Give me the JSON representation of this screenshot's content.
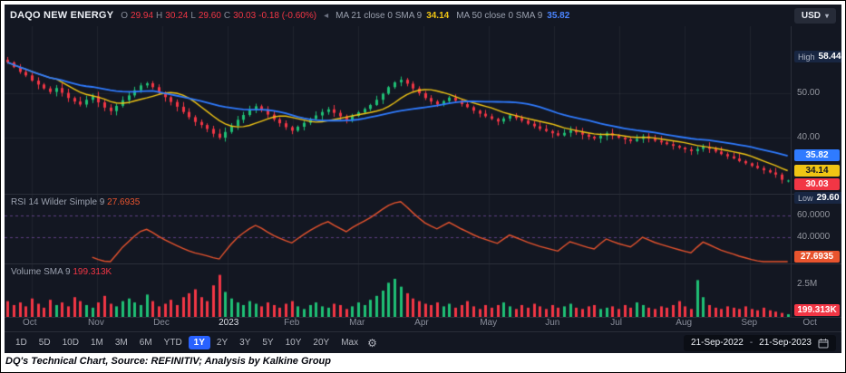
{
  "header": {
    "symbol": "DAQO NEW ENERGY",
    "ohlc": [
      {
        "k": "O",
        "v": "29.94"
      },
      {
        "k": "H",
        "v": "30.24"
      },
      {
        "k": "L",
        "v": "29.60"
      },
      {
        "k": "C",
        "v": "30.03"
      }
    ],
    "change": "-0.18 (-0.60%)",
    "ma_fast_label": "MA 21 close 0 SMA 9",
    "ma_fast_value": "34.14",
    "ma_slow_label": "MA 50 close 0 SMA 9",
    "ma_slow_value": "35.82",
    "currency": "USD"
  },
  "icons": {
    "caret_down": "▾",
    "gear": "⚙",
    "collapse_left": "◂"
  },
  "colors": {
    "up": "#1fbf75",
    "down": "#f23645",
    "accent": "#2962ff",
    "ma_fast": "#f0c514",
    "ma_slow": "#2f7bff",
    "rsi": "#e8542e"
  },
  "price_axis": {
    "high_label": "High",
    "high_value": "58.44",
    "ticks": [
      "50.00",
      "40.00"
    ],
    "badge_blue": "35.82",
    "badge_yellow": "34.14",
    "badge_red": "30.03",
    "low_label": "Low",
    "low_value": "29.60"
  },
  "rsi_panel": {
    "title": "RSI 14 Wilder Simple 9",
    "value": "27.6935",
    "tick_60": "60.0000",
    "tick_40": "40.0000",
    "badge": "27.6935"
  },
  "volume_panel": {
    "title": "Volume SMA 9",
    "value": "199.313K",
    "tick": "2.5M",
    "badge": "199.313K"
  },
  "toolbar": {
    "ranges": [
      "1D",
      "5D",
      "10D",
      "1M",
      "3M",
      "6M",
      "YTD",
      "1Y",
      "2Y",
      "3Y",
      "5Y",
      "10Y",
      "20Y",
      "Max"
    ],
    "active": "1Y",
    "date_from": "21-Sep-2022",
    "date_separator": "-",
    "date_to": "21-Sep-2023"
  },
  "caption": "DQ's Technical Chart, Source: REFINITIV; Analysis by Kalkine Group",
  "chart_data": {
    "type": "candlestick",
    "title": "DAQO NEW ENERGY daily, 21-Sep-2022 to 21-Sep-2023",
    "panels": [
      "price",
      "rsi",
      "volume"
    ],
    "price_axis_range": [
      27,
      65.5
    ],
    "gridline_prices": [
      50,
      40
    ],
    "high": 58.44,
    "low": 29.6,
    "last_candle": {
      "o": 29.94,
      "h": 30.24,
      "l": 29.6,
      "c": 30.03
    },
    "closes": [
      57.2,
      56.1,
      55.0,
      54.2,
      53.0,
      52.1,
      51.2,
      50.4,
      51.3,
      50.2,
      49.0,
      48.2,
      47.5,
      48.6,
      49.4,
      48.0,
      46.8,
      46.0,
      47.2,
      48.5,
      49.6,
      50.8,
      51.9,
      52.4,
      51.5,
      50.3,
      49.2,
      48.1,
      47.0,
      45.8,
      44.6,
      43.5,
      42.8,
      41.9,
      40.8,
      39.9,
      41.2,
      42.6,
      44.0,
      45.1,
      46.2,
      47.1,
      46.3,
      45.2,
      44.1,
      43.2,
      42.3,
      41.5,
      42.4,
      43.3,
      44.2,
      45.0,
      45.8,
      46.4,
      45.6,
      44.8,
      44.0,
      44.9,
      45.7,
      46.5,
      47.4,
      48.6,
      50.0,
      51.5,
      52.6,
      53.2,
      52.3,
      51.2,
      50.1,
      49.0,
      48.2,
      47.5,
      48.3,
      49.1,
      48.4,
      47.6,
      46.9,
      46.1,
      45.4,
      44.8,
      44.2,
      43.6,
      44.3,
      45.0,
      44.4,
      43.8,
      43.1,
      42.5,
      41.9,
      41.4,
      40.9,
      40.4,
      41.0,
      41.6,
      41.1,
      40.6,
      40.1,
      39.7,
      40.3,
      40.9,
      40.4,
      39.9,
      39.5,
      39.1,
      39.6,
      40.2,
      39.7,
      39.2,
      38.8,
      38.4,
      38.0,
      37.6,
      37.2,
      36.8,
      37.3,
      37.8,
      37.3,
      36.7,
      36.1,
      35.6,
      35.1,
      34.5,
      34.0,
      33.4,
      32.9,
      32.4,
      31.9,
      31.4,
      30.21,
      30.03
    ],
    "volumes": [
      1.2,
      0.9,
      1.1,
      0.8,
      1.4,
      1.0,
      0.7,
      1.3,
      0.9,
      1.1,
      0.8,
      1.5,
      1.2,
      0.9,
      0.7,
      1.1,
      1.6,
      1.0,
      0.8,
      1.2,
      1.4,
      1.1,
      0.9,
      1.7,
      1.2,
      0.8,
      1.0,
      1.3,
      0.9,
      1.5,
      1.8,
      2.1,
      1.5,
      1.2,
      2.4,
      3.2,
      1.9,
      1.4,
      1.1,
      0.9,
      1.2,
      1.0,
      0.8,
      1.1,
      0.9,
      0.7,
      1.0,
      1.2,
      0.8,
      0.6,
      0.9,
      1.1,
      0.8,
      0.7,
      1.0,
      0.9,
      0.6,
      0.8,
      1.1,
      0.9,
      1.3,
      1.6,
      2.0,
      2.6,
      2.9,
      2.3,
      1.8,
      1.4,
      1.2,
      1.0,
      0.9,
      1.1,
      0.8,
      1.0,
      0.7,
      0.9,
      1.2,
      0.8,
      0.6,
      0.9,
      0.7,
      0.9,
      1.1,
      0.8,
      0.6,
      0.9,
      0.7,
      1.0,
      0.8,
      0.6,
      0.9,
      0.7,
      0.8,
      1.0,
      0.7,
      0.6,
      0.8,
      0.9,
      0.6,
      0.7,
      0.8,
      0.6,
      0.9,
      0.7,
      1.1,
      0.9,
      0.7,
      0.6,
      0.8,
      0.7,
      0.9,
      1.2,
      0.8,
      0.6,
      2.8,
      1.5,
      0.9,
      0.7,
      0.6,
      0.8,
      0.7,
      0.6,
      0.8,
      0.6,
      0.5,
      0.7,
      0.5,
      0.4,
      0.3,
      0.2
    ],
    "ma_fast": {
      "name": "MA 21 close 0 SMA 9",
      "window": 9,
      "color": "#f0c514",
      "last": 34.14
    },
    "ma_slow": {
      "name": "MA 50 close 0 SMA 9",
      "window": 25,
      "color": "#2f7bff",
      "last": 35.82
    },
    "rsi": {
      "name": "RSI 14 Wilder Simple 9",
      "period": 14,
      "last": 27.6935,
      "range": [
        15,
        80
      ],
      "grid": [
        60,
        40
      ],
      "color": "#e8542e"
    },
    "volume_axis": {
      "max": 4.0,
      "tick": 2.5,
      "tick_label": "2.5M",
      "last_label": "199.313K"
    },
    "months": [
      {
        "label": "Oct",
        "i": 4
      },
      {
        "label": "Nov",
        "i": 14.8
      },
      {
        "label": "Dec",
        "i": 25.6
      },
      {
        "label": "2023",
        "i": 36.4,
        "major": true
      },
      {
        "label": "Feb",
        "i": 47.2
      },
      {
        "label": "Mar",
        "i": 58
      },
      {
        "label": "Apr",
        "i": 68.8
      },
      {
        "label": "May",
        "i": 79.6
      },
      {
        "label": "Jun",
        "i": 90.4
      },
      {
        "label": "Jul",
        "i": 101.2
      },
      {
        "label": "Aug",
        "i": 112
      },
      {
        "label": "Sep",
        "i": 122.8
      },
      {
        "label": "Oct",
        "i": 133
      }
    ]
  }
}
